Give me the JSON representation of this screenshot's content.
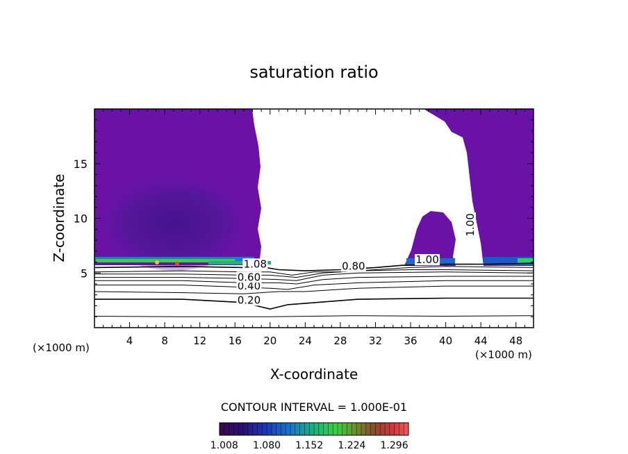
{
  "chart_data": {
    "type": "contour",
    "title": "saturation ratio",
    "xlabel": "X-coordinate",
    "ylabel": "Z-coordinate",
    "x_unit_left": "(×1000 m)",
    "x_unit_right": "(×1000 m)",
    "xlim": [
      0,
      50
    ],
    "ylim": [
      0,
      20
    ],
    "x_ticks": [
      4,
      8,
      12,
      16,
      20,
      24,
      28,
      32,
      36,
      40,
      44,
      48
    ],
    "y_ticks": [
      5,
      10,
      15
    ],
    "contour_interval_text": "CONTOUR INTERVAL = 1.000E-01",
    "colorbar": {
      "tick_labels": [
        "1.008",
        "1.080",
        "1.152",
        "1.224",
        "1.296"
      ],
      "range": [
        1.0,
        1.32
      ]
    },
    "contour_labels": [
      {
        "text": "0.20",
        "x": 17.6,
        "z": 2.2
      },
      {
        "text": "0.40",
        "x": 17.6,
        "z": 3.5
      },
      {
        "text": "0.60",
        "x": 17.6,
        "z": 4.3
      },
      {
        "text": "1.08",
        "x": 18.3,
        "z": 5.5
      },
      {
        "text": "0.80",
        "x": 29.5,
        "z": 5.3
      },
      {
        "text": "1.00",
        "x": 37.9,
        "z": 5.9
      },
      {
        "text": "1.00",
        "x": 43.2,
        "z": 9.4,
        "rotated": true
      }
    ],
    "contour_lines": [
      {
        "level": 0.1,
        "points": [
          [
            0,
            1.05
          ],
          [
            10,
            1.0
          ],
          [
            20,
            1.0
          ],
          [
            30,
            1.1
          ],
          [
            40,
            1.05
          ],
          [
            50,
            1.1
          ]
        ]
      },
      {
        "level": 0.2,
        "points": [
          [
            0,
            2.6
          ],
          [
            10,
            2.6
          ],
          [
            17,
            2.3
          ],
          [
            20,
            1.7
          ],
          [
            22,
            2.1
          ],
          [
            30,
            2.6
          ],
          [
            40,
            2.7
          ],
          [
            50,
            2.7
          ]
        ]
      },
      {
        "level": 0.3,
        "points": [
          [
            0,
            3.3
          ],
          [
            10,
            3.2
          ],
          [
            17,
            3.1
          ],
          [
            21,
            3.3
          ],
          [
            24,
            3.3
          ],
          [
            30,
            3.6
          ],
          [
            40,
            3.8
          ],
          [
            50,
            3.8
          ]
        ]
      },
      {
        "level": 0.4,
        "points": [
          [
            0,
            3.9
          ],
          [
            10,
            3.9
          ],
          [
            17,
            3.7
          ],
          [
            20,
            3.6
          ],
          [
            22,
            3.5
          ],
          [
            25,
            3.9
          ],
          [
            30,
            4.1
          ],
          [
            40,
            4.3
          ],
          [
            50,
            4.3
          ]
        ]
      },
      {
        "level": 0.5,
        "points": [
          [
            0,
            4.3
          ],
          [
            10,
            4.3
          ],
          [
            17,
            4.1
          ],
          [
            21,
            4.1
          ],
          [
            23,
            4.0
          ],
          [
            26,
            4.4
          ],
          [
            30,
            4.6
          ],
          [
            40,
            4.7
          ],
          [
            50,
            4.7
          ]
        ]
      },
      {
        "level": 0.6,
        "points": [
          [
            0,
            4.6
          ],
          [
            10,
            4.6
          ],
          [
            17,
            4.5
          ],
          [
            21,
            4.4
          ],
          [
            23,
            4.3
          ],
          [
            26,
            4.8
          ],
          [
            30,
            5.0
          ],
          [
            40,
            5.1
          ],
          [
            50,
            5.0
          ]
        ]
      },
      {
        "level": 0.7,
        "points": [
          [
            0,
            4.9
          ],
          [
            10,
            4.9
          ],
          [
            17,
            4.8
          ],
          [
            20,
            4.8
          ],
          [
            23,
            4.6
          ],
          [
            26,
            5.0
          ],
          [
            30,
            5.2
          ],
          [
            36,
            5.3
          ],
          [
            40,
            5.3
          ],
          [
            50,
            5.2
          ]
        ]
      },
      {
        "level": 0.8,
        "points": [
          [
            0,
            5.1
          ],
          [
            10,
            5.2
          ],
          [
            17,
            5.1
          ],
          [
            20,
            5.1
          ],
          [
            22.5,
            4.8
          ],
          [
            25,
            5.1
          ],
          [
            28,
            5.1
          ],
          [
            32,
            5.3
          ],
          [
            36,
            5.5
          ],
          [
            40,
            5.6
          ],
          [
            50,
            5.5
          ]
        ]
      },
      {
        "level": 1.0,
        "points": [
          [
            0,
            5.5
          ],
          [
            10,
            5.6
          ],
          [
            17,
            5.5
          ],
          [
            19.5,
            5.5
          ],
          [
            21,
            5.3
          ],
          [
            24,
            5.2
          ],
          [
            28,
            5.3
          ],
          [
            32,
            5.5
          ],
          [
            35,
            5.7
          ],
          [
            40,
            5.8
          ],
          [
            45,
            5.8
          ],
          [
            50,
            5.9
          ]
        ]
      }
    ]
  }
}
